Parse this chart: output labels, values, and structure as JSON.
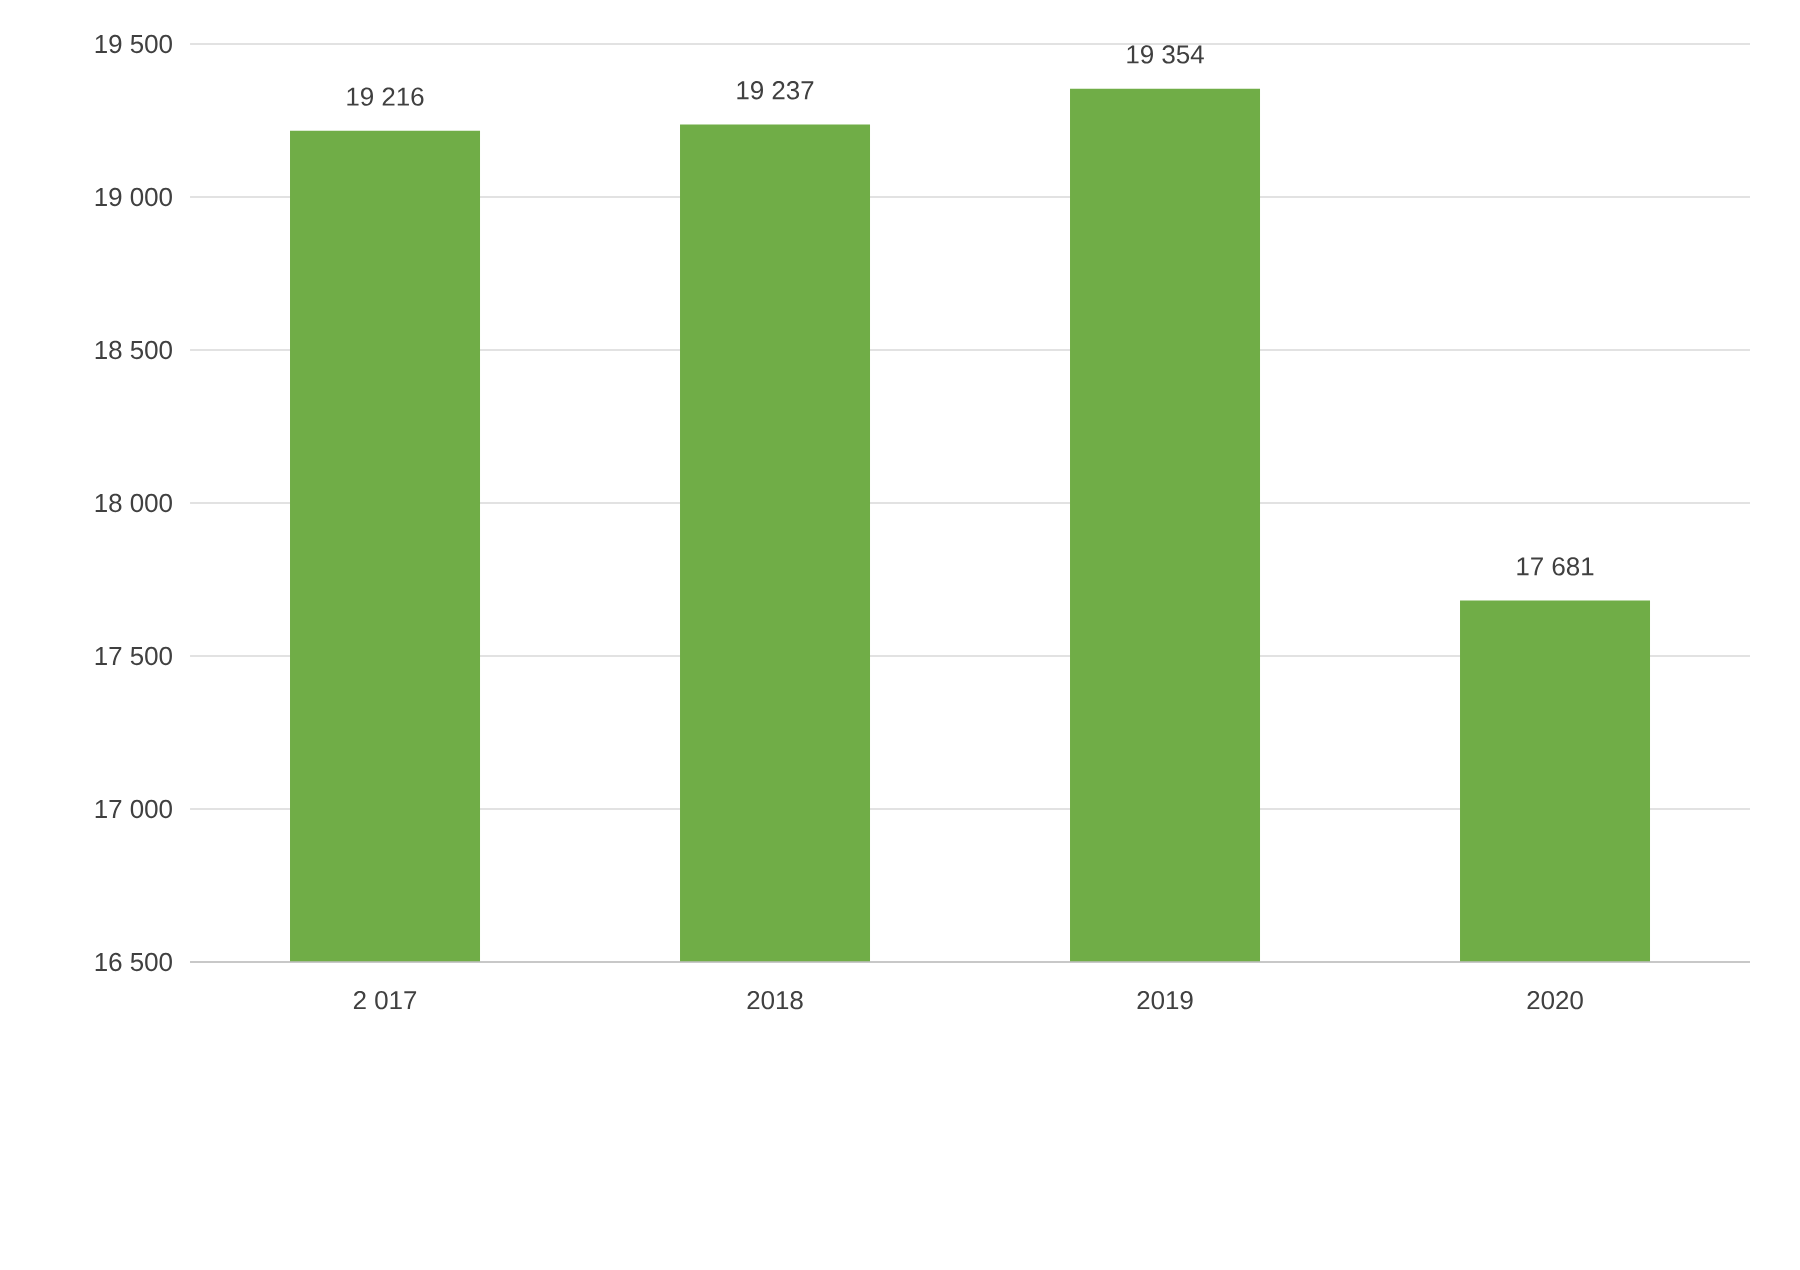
{
  "chart_data": {
    "type": "bar",
    "categories": [
      "2 017",
      "2018",
      "2019",
      "2020"
    ],
    "values": [
      19216,
      19237,
      19354,
      17681
    ],
    "value_labels": [
      "19 216",
      "19 237",
      "19 354",
      "17 681"
    ],
    "color": "#70ad47",
    "ylim": [
      16500,
      19500
    ],
    "yticks": [
      {
        "value": 16500,
        "label": "16 500"
      },
      {
        "value": 17000,
        "label": "17 000"
      },
      {
        "value": 17500,
        "label": "17 500"
      },
      {
        "value": 18000,
        "label": "18 000"
      },
      {
        "value": 18500,
        "label": "18 500"
      },
      {
        "value": 19000,
        "label": "19 000"
      },
      {
        "value": 19500,
        "label": "19 500"
      }
    ],
    "grid": "y"
  }
}
